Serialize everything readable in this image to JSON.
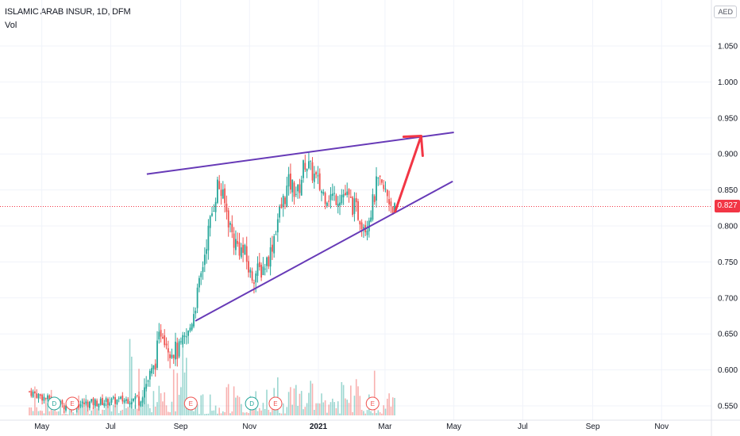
{
  "header": {
    "title": "ISLAMIC ARAB INSUR, 1D, DFM",
    "volume_label": "Vol",
    "currency": "AED"
  },
  "colors": {
    "up": "#26a69a",
    "down": "#ef5350",
    "trendline": "#673ab7",
    "arrow": "#f23645",
    "price_line": "#f23645",
    "grid": "#f0f3fa"
  },
  "chart_data": {
    "type": "candlestick",
    "last_price": 0.827,
    "last_price_label": "0.827",
    "y_ticks": [
      "1.050",
      "1.000",
      "0.950",
      "0.900",
      "0.850",
      "0.800",
      "0.750",
      "0.700",
      "0.650",
      "0.600",
      "0.550"
    ],
    "ylim": [
      0.545,
      1.085
    ],
    "x_ticks": [
      "May",
      "Jul",
      "Sep",
      "Nov",
      "2021",
      "Mar",
      "May",
      "Jul",
      "Sep",
      "Nov"
    ],
    "price_path": [
      [
        "2020-04-20",
        0.57
      ],
      [
        "2020-05-20",
        0.55
      ],
      [
        "2020-06-20",
        0.555
      ],
      [
        "2020-07-25",
        0.56
      ],
      [
        "2020-08-08",
        0.6
      ],
      [
        "2020-08-15",
        0.66
      ],
      [
        "2020-08-22",
        0.63
      ],
      [
        "2020-08-30",
        0.625
      ],
      [
        "2020-09-08",
        0.65
      ],
      [
        "2020-09-18",
        0.72
      ],
      [
        "2020-09-24",
        0.78
      ],
      [
        "2020-10-04",
        0.86
      ],
      [
        "2020-10-10",
        0.83
      ],
      [
        "2020-10-18",
        0.78
      ],
      [
        "2020-10-28",
        0.76
      ],
      [
        "2020-11-02",
        0.73
      ],
      [
        "2020-11-12",
        0.74
      ],
      [
        "2020-11-19",
        0.76
      ],
      [
        "2020-11-26",
        0.81
      ],
      [
        "2020-12-06",
        0.86
      ],
      [
        "2020-12-14",
        0.845
      ],
      [
        "2020-12-20",
        0.89
      ],
      [
        "2020-12-28",
        0.87
      ],
      [
        "2021-01-05",
        0.845
      ],
      [
        "2021-01-15",
        0.84
      ],
      [
        "2021-01-24",
        0.845
      ],
      [
        "2021-02-04",
        0.82
      ],
      [
        "2021-02-12",
        0.8
      ],
      [
        "2021-02-18",
        0.83
      ],
      [
        "2021-02-22",
        0.86
      ],
      [
        "2021-03-02",
        0.845
      ],
      [
        "2021-03-10",
        0.82
      ]
    ],
    "volume_peak_scale": [
      0.55,
      1.0
    ],
    "earnings_markers": [
      {
        "date": "2020-05-12",
        "label": "D"
      },
      {
        "date": "2020-05-28",
        "label": "E"
      },
      {
        "date": "2020-09-10",
        "label": "E"
      },
      {
        "date": "2020-11-03",
        "label": "D"
      },
      {
        "date": "2020-11-24",
        "label": "E"
      },
      {
        "date": "2021-02-18",
        "label": "E"
      }
    ],
    "drawings": {
      "upper_trendline": [
        [
          "2020-08-02",
          0.872
        ],
        [
          "2021-05-01",
          0.93
        ]
      ],
      "lower_trendline": [
        [
          "2020-09-14",
          0.668
        ],
        [
          "2021-04-30",
          0.862
        ]
      ],
      "projection_arrow": [
        [
          "2021-03-10",
          0.82
        ],
        [
          "2021-04-02",
          0.925
        ]
      ]
    }
  }
}
